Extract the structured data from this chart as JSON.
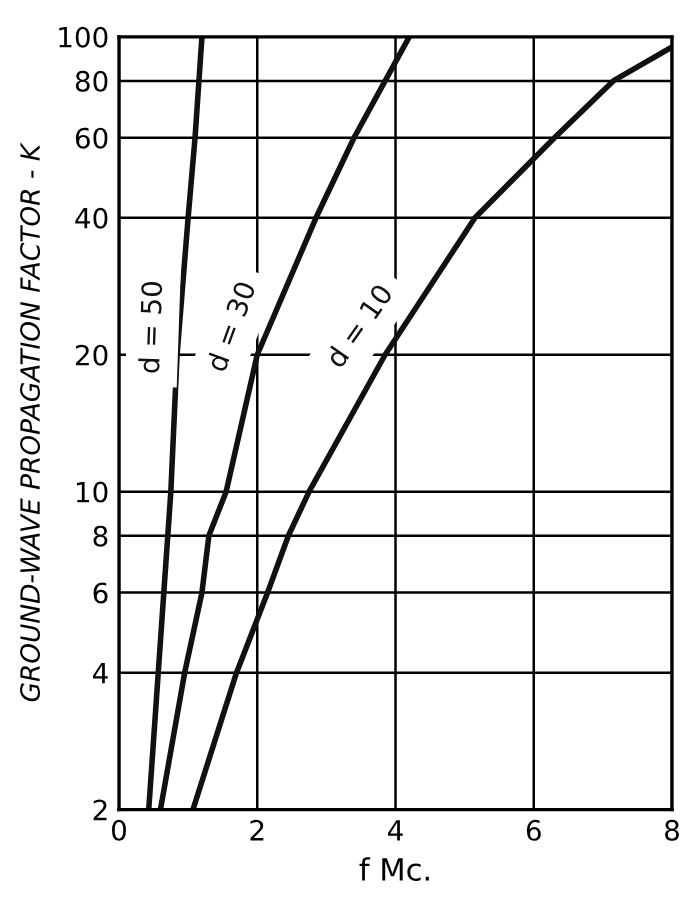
{
  "chart_data": {
    "type": "line",
    "xlabel": "f Mc.",
    "ylabel": "GROUND-WAVE PROPAGATION FACTOR - K",
    "log": "y",
    "xlim": [
      0,
      8
    ],
    "ylim": [
      2,
      100
    ],
    "xticks": [
      0,
      2,
      4,
      6,
      8
    ],
    "yticks": [
      2,
      4,
      6,
      8,
      10,
      20,
      40,
      60,
      80,
      100
    ],
    "grid": true,
    "marker": "none",
    "line_style": "solid",
    "legend": false,
    "series": [
      {
        "name": "d = 50",
        "color": "#111111",
        "x": [
          0.43,
          0.75,
          0.84,
          1.0,
          1.1,
          1.2
        ],
        "values": [
          2,
          10,
          20,
          40,
          60,
          100
        ]
      },
      {
        "name": "d = 30",
        "color": "#111111",
        "x": [
          0.6,
          0.95,
          1.2,
          1.3,
          1.55,
          2.0,
          2.85,
          3.4,
          3.85,
          4.2
        ],
        "values": [
          2,
          4,
          6,
          8,
          10,
          20,
          40,
          60,
          80,
          100
        ]
      },
      {
        "name": "d = 10",
        "color": "#111111",
        "x": [
          1.07,
          1.7,
          2.15,
          2.45,
          2.75,
          3.85,
          5.15,
          6.3,
          7.15,
          8.0
        ],
        "values": [
          2,
          4,
          6,
          8,
          10,
          20,
          40,
          60,
          80,
          95
        ]
      }
    ]
  }
}
